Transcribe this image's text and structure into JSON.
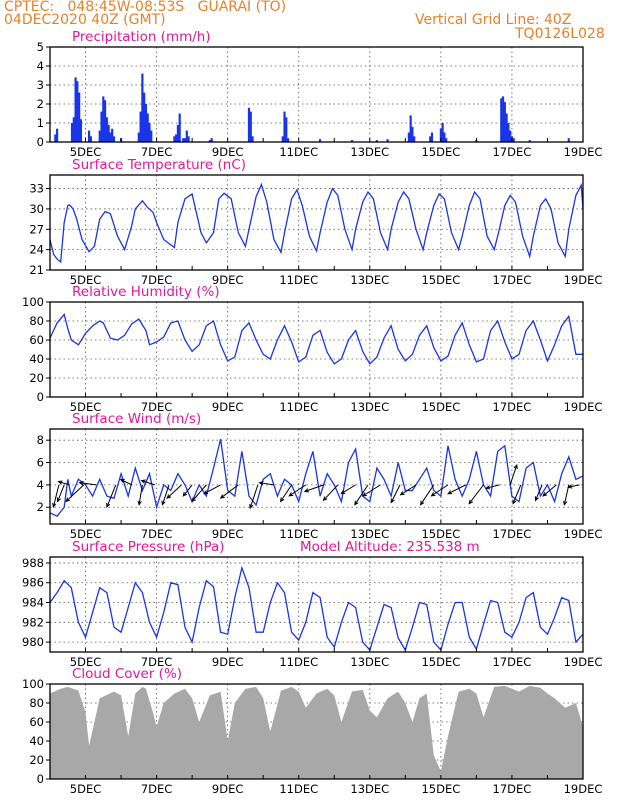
{
  "header": {
    "line1": "CPTEC:   048:45W-08:53S   GUARAI (TO)",
    "line2": "04DEC2020 40Z (GMT)",
    "right1": "Vertical Grid Line: 40Z",
    "right2": "TQ0126L028"
  },
  "model_altitude": "Model Altitude: 235.538 m",
  "x_axis": {
    "start_day": 4,
    "end_day": 19,
    "ticks": [
      {
        "day": 5,
        "label": "5DEC"
      },
      {
        "day": 7,
        "label": "7DEC"
      },
      {
        "day": 9,
        "label": "9DEC"
      },
      {
        "day": 11,
        "label": "11DEC"
      },
      {
        "day": 13,
        "label": "13DEC"
      },
      {
        "day": 15,
        "label": "15DEC"
      },
      {
        "day": 17,
        "label": "17DEC"
      },
      {
        "day": 19,
        "label": "19DEC"
      }
    ]
  },
  "colors": {
    "line": "#1a35e8",
    "bar": "#1a35e8",
    "cloud": "#a8a8a8",
    "title": "#e0189a",
    "header": "#e8802a",
    "grid": "#555555"
  },
  "chart_data": [
    {
      "type": "bar",
      "title": "Precipitation (mm/h)",
      "ylim": [
        0,
        5
      ],
      "yticks": [
        0,
        1,
        2,
        3,
        4,
        5
      ],
      "x_unit": "day of Dec 2020",
      "x": [
        4.15,
        4.2,
        4.62,
        4.67,
        4.72,
        4.77,
        4.82,
        4.87,
        5.1,
        5.15,
        5.4,
        5.45,
        5.5,
        5.55,
        5.6,
        5.65,
        5.7,
        5.75,
        5.8,
        6.0,
        6.5,
        6.55,
        6.6,
        6.65,
        6.7,
        6.75,
        6.8,
        6.85,
        7.5,
        7.55,
        7.6,
        7.65,
        7.75,
        7.8,
        7.85,
        7.9,
        8.5,
        8.55,
        9.6,
        9.65,
        9.7,
        10.55,
        10.6,
        10.65,
        10.7,
        11.6,
        12.5,
        13.2,
        13.5,
        14.1,
        14.15,
        14.2,
        14.25,
        14.7,
        14.75,
        15.0,
        15.05,
        15.1,
        15.15,
        16.0,
        16.7,
        16.75,
        16.8,
        16.85,
        16.9,
        16.95,
        17.0,
        17.05,
        17.5,
        18.6
      ],
      "values": [
        0.4,
        0.7,
        1.0,
        1.3,
        3.4,
        3.2,
        2.6,
        1.2,
        0.6,
        0.3,
        0.6,
        1.6,
        2.4,
        2.2,
        1.3,
        0.9,
        0.5,
        0.7,
        0.3,
        0.2,
        0.5,
        1.6,
        3.6,
        2.6,
        2.0,
        1.5,
        1.0,
        0.6,
        0.3,
        0.4,
        0.9,
        1.5,
        0.2,
        0.2,
        0.6,
        0.3,
        0.1,
        0.2,
        1.8,
        1.6,
        0.3,
        0.3,
        1.6,
        1.3,
        0.2,
        0.15,
        0.1,
        0.1,
        0.15,
        0.5,
        1.4,
        0.8,
        0.3,
        0.3,
        0.5,
        0.7,
        1.0,
        0.5,
        0.2,
        0.1,
        2.3,
        2.4,
        2.1,
        1.5,
        1.0,
        0.6,
        0.3,
        0.2,
        0.1,
        0.2
      ]
    },
    {
      "type": "line",
      "title": "Surface Temperature (nC)",
      "ylim": [
        21,
        35
      ],
      "yticks": [
        21,
        24,
        27,
        30,
        33
      ],
      "x": [
        4,
        4.1,
        4.2,
        4.3,
        4.4,
        4.5,
        4.55,
        4.65,
        4.75,
        4.9,
        5.1,
        5.25,
        5.4,
        5.55,
        5.7,
        5.9,
        6.1,
        6.3,
        6.4,
        6.6,
        6.75,
        6.9,
        7.0,
        7.2,
        7.5,
        7.6,
        7.8,
        8.0,
        8.25,
        8.4,
        8.6,
        8.75,
        8.9,
        9.1,
        9.3,
        9.5,
        9.6,
        9.8,
        9.95,
        10.1,
        10.3,
        10.5,
        10.6,
        10.8,
        10.95,
        11.1,
        11.3,
        11.5,
        11.6,
        11.8,
        11.95,
        12.1,
        12.3,
        12.5,
        12.6,
        12.8,
        12.95,
        13.1,
        13.3,
        13.5,
        13.6,
        13.8,
        13.95,
        14.1,
        14.3,
        14.5,
        14.6,
        14.8,
        14.95,
        15.1,
        15.3,
        15.5,
        15.6,
        15.8,
        15.95,
        16.1,
        16.3,
        16.5,
        16.6,
        16.8,
        16.95,
        17.1,
        17.3,
        17.5,
        17.6,
        17.8,
        17.95,
        18.1,
        18.3,
        18.5,
        18.6,
        18.8,
        18.95,
        19.0
      ],
      "values": [
        25.5,
        23.3,
        22.6,
        22.2,
        28.0,
        30.5,
        30.6,
        30.0,
        28.5,
        25.5,
        23.7,
        24.5,
        28.5,
        29.6,
        29.3,
        26.0,
        24.0,
        27.5,
        30.0,
        31.2,
        30.2,
        29.5,
        28.0,
        25.5,
        24.3,
        28.0,
        31.5,
        32.2,
        26.5,
        25.0,
        26.5,
        31.5,
        32.3,
        31.5,
        26.5,
        24.5,
        27.0,
        31.8,
        33.6,
        31.0,
        25.5,
        23.6,
        26.5,
        31.5,
        32.8,
        30.5,
        26.0,
        23.8,
        26.5,
        31.0,
        33.0,
        32.0,
        27.0,
        24.0,
        27.0,
        31.0,
        32.5,
        31.5,
        26.5,
        24.0,
        27.0,
        31.0,
        32.5,
        31.5,
        27.0,
        24.0,
        26.5,
        30.5,
        32.2,
        31.5,
        26.5,
        24.0,
        26.0,
        30.5,
        32.5,
        31.5,
        26.0,
        24.0,
        26.0,
        30.5,
        32.0,
        31.0,
        26.0,
        23.0,
        26.0,
        30.5,
        31.5,
        30.0,
        25.0,
        23.0,
        27.0,
        32.0,
        33.5,
        30.0
      ]
    },
    {
      "type": "line",
      "title": "Relative Humidity (%)",
      "ylim": [
        0,
        100
      ],
      "yticks": [
        0,
        20,
        40,
        60,
        80,
        100
      ],
      "x": [
        4,
        4.2,
        4.4,
        4.5,
        4.6,
        4.8,
        5.0,
        5.2,
        5.4,
        5.5,
        5.7,
        5.9,
        6.1,
        6.3,
        6.5,
        6.7,
        6.8,
        7.0,
        7.2,
        7.4,
        7.6,
        7.8,
        8.0,
        8.2,
        8.4,
        8.6,
        8.8,
        9.0,
        9.2,
        9.4,
        9.6,
        9.8,
        10.0,
        10.2,
        10.4,
        10.6,
        10.8,
        11.0,
        11.2,
        11.4,
        11.6,
        11.8,
        12.0,
        12.2,
        12.4,
        12.6,
        12.8,
        13.0,
        13.2,
        13.4,
        13.6,
        13.8,
        14.0,
        14.2,
        14.4,
        14.6,
        14.8,
        15.0,
        15.2,
        15.4,
        15.6,
        15.8,
        16.0,
        16.2,
        16.4,
        16.6,
        16.8,
        17.0,
        17.2,
        17.4,
        17.6,
        17.8,
        18.0,
        18.2,
        18.4,
        18.6,
        18.8,
        19.0
      ],
      "values": [
        62,
        78,
        87,
        72,
        60,
        55,
        67,
        75,
        80,
        78,
        62,
        60,
        65,
        77,
        82,
        70,
        55,
        58,
        63,
        78,
        80,
        60,
        48,
        55,
        75,
        80,
        55,
        38,
        42,
        70,
        78,
        60,
        45,
        40,
        60,
        75,
        58,
        37,
        42,
        65,
        70,
        47,
        35,
        40,
        60,
        70,
        48,
        35,
        42,
        62,
        75,
        50,
        38,
        45,
        65,
        75,
        52,
        38,
        43,
        65,
        78,
        55,
        37,
        40,
        70,
        80,
        58,
        40,
        45,
        70,
        80,
        60,
        38,
        55,
        75,
        85,
        45,
        45
      ]
    },
    {
      "type": "line",
      "title": "Surface Wind (m/s)",
      "ylim": [
        0.5,
        9
      ],
      "yticks": [
        2,
        4,
        6,
        8
      ],
      "x": [
        4,
        4.2,
        4.4,
        4.5,
        4.6,
        4.8,
        5.0,
        5.2,
        5.4,
        5.6,
        5.8,
        6.0,
        6.2,
        6.4,
        6.6,
        6.8,
        7.0,
        7.2,
        7.4,
        7.6,
        7.8,
        8.0,
        8.2,
        8.4,
        8.6,
        8.8,
        9.0,
        9.2,
        9.4,
        9.6,
        9.8,
        10.0,
        10.2,
        10.4,
        10.6,
        10.8,
        11.0,
        11.2,
        11.4,
        11.6,
        11.8,
        12.0,
        12.2,
        12.4,
        12.6,
        12.8,
        13.0,
        13.2,
        13.4,
        13.6,
        13.8,
        14.0,
        14.2,
        14.4,
        14.6,
        14.8,
        15.0,
        15.2,
        15.4,
        15.6,
        15.8,
        16.0,
        16.2,
        16.4,
        16.6,
        16.8,
        17.0,
        17.2,
        17.4,
        17.6,
        17.8,
        18.0,
        18.2,
        18.4,
        18.6,
        18.8,
        19.0
      ],
      "values": [
        1.5,
        1.2,
        2.0,
        4.5,
        3.0,
        4.5,
        4.0,
        3.0,
        4.5,
        3.0,
        2.8,
        5.0,
        3.0,
        5.5,
        3.5,
        5.0,
        2.0,
        4.0,
        3.5,
        5.0,
        4.0,
        2.5,
        4.0,
        3.0,
        5.5,
        8.1,
        3.5,
        3.0,
        7.0,
        3.0,
        2.2,
        4.5,
        5.0,
        3.0,
        4.5,
        4.0,
        2.5,
        5.0,
        7.0,
        3.0,
        5.0,
        4.0,
        2.5,
        6.0,
        7.2,
        3.0,
        2.5,
        5.5,
        4.5,
        3.0,
        6.0,
        3.5,
        3.5,
        4.5,
        5.5,
        3.5,
        3.0,
        7.5,
        4.5,
        3.0,
        4.5,
        7.0,
        4.0,
        3.0,
        7.0,
        7.5,
        3.0,
        2.5,
        5.5,
        6.0,
        3.0,
        4.0,
        2.5,
        5.0,
        6.5,
        4.5,
        4.8
      ],
      "vectors": [
        {
          "x": 4.25,
          "u": -0.5,
          "v": -2.0
        },
        {
          "x": 4.4,
          "u": -0.6,
          "v": -1.5
        },
        {
          "x": 4.55,
          "u": -1.0,
          "v": 0.3
        },
        {
          "x": 4.95,
          "u": -1.6,
          "v": -1.5
        },
        {
          "x": 5.3,
          "u": -1.5,
          "v": 0.2
        },
        {
          "x": 5.85,
          "u": -0.8,
          "v": -2.0
        },
        {
          "x": 6.3,
          "u": -1.0,
          "v": 0.5
        },
        {
          "x": 6.6,
          "u": -0.3,
          "v": -1.8
        },
        {
          "x": 6.95,
          "u": -1.2,
          "v": 0.4
        },
        {
          "x": 7.35,
          "u": -0.6,
          "v": -1.8
        },
        {
          "x": 7.7,
          "u": -1.3,
          "v": -1.2
        },
        {
          "x": 8.0,
          "u": -0.8,
          "v": -1.0
        },
        {
          "x": 8.4,
          "u": -1.3,
          "v": -1.5
        },
        {
          "x": 8.8,
          "u": -1.5,
          "v": -0.8
        },
        {
          "x": 9.3,
          "u": -1.6,
          "v": -1.2
        },
        {
          "x": 9.85,
          "u": -0.7,
          "v": -2.1
        },
        {
          "x": 10.3,
          "u": -1.3,
          "v": 0.2
        },
        {
          "x": 10.8,
          "u": -1.0,
          "v": -1.5
        },
        {
          "x": 11.2,
          "u": -1.5,
          "v": -1.0
        },
        {
          "x": 11.7,
          "u": -1.7,
          "v": -0.6
        },
        {
          "x": 12.1,
          "u": -1.3,
          "v": -1.4
        },
        {
          "x": 12.6,
          "u": -1.3,
          "v": -0.8
        },
        {
          "x": 12.95,
          "u": -1.2,
          "v": -1.8
        },
        {
          "x": 13.3,
          "u": -1.6,
          "v": -1.0
        },
        {
          "x": 13.85,
          "u": -0.8,
          "v": -1.6
        },
        {
          "x": 14.3,
          "u": -1.4,
          "v": -0.9
        },
        {
          "x": 14.8,
          "u": -1.2,
          "v": -1.8
        },
        {
          "x": 15.2,
          "u": -1.5,
          "v": -1.0
        },
        {
          "x": 15.7,
          "u": -1.6,
          "v": -0.8
        },
        {
          "x": 16.2,
          "u": -1.3,
          "v": -1.7
        },
        {
          "x": 16.65,
          "u": -1.2,
          "v": -0.3
        },
        {
          "x": 16.95,
          "u": 0.6,
          "v": 1.8
        },
        {
          "x": 17.25,
          "u": -0.7,
          "v": -1.7
        },
        {
          "x": 17.85,
          "u": -0.6,
          "v": -1.4
        },
        {
          "x": 18.25,
          "u": -1.2,
          "v": -1.0
        },
        {
          "x": 18.6,
          "u": -0.4,
          "v": -1.8
        },
        {
          "x": 18.9,
          "u": -1.0,
          "v": -0.2
        }
      ]
    },
    {
      "type": "line",
      "title": "Surface Pressure (hPa)",
      "ylim": [
        979,
        988.6
      ],
      "yticks": [
        980,
        982,
        984,
        986,
        988
      ],
      "x": [
        4,
        4.2,
        4.4,
        4.6,
        4.8,
        5.0,
        5.2,
        5.4,
        5.6,
        5.8,
        6.0,
        6.2,
        6.4,
        6.6,
        6.8,
        7.0,
        7.2,
        7.4,
        7.6,
        7.8,
        8.0,
        8.2,
        8.4,
        8.6,
        8.8,
        9.0,
        9.2,
        9.4,
        9.6,
        9.8,
        10.0,
        10.2,
        10.4,
        10.6,
        10.8,
        11.0,
        11.2,
        11.4,
        11.6,
        11.8,
        12.0,
        12.2,
        12.4,
        12.6,
        12.8,
        13.0,
        13.2,
        13.4,
        13.6,
        13.8,
        14.0,
        14.2,
        14.4,
        14.6,
        14.8,
        15.0,
        15.2,
        15.4,
        15.6,
        15.8,
        16.0,
        16.2,
        16.4,
        16.6,
        16.8,
        17.0,
        17.2,
        17.4,
        17.6,
        17.8,
        18.0,
        18.2,
        18.4,
        18.6,
        18.8,
        19.0
      ],
      "values": [
        984,
        985,
        986.2,
        985.5,
        982,
        980.5,
        983,
        985.5,
        985,
        981.5,
        981,
        983.5,
        986,
        985,
        982,
        980.5,
        983,
        986,
        985.8,
        981.5,
        980,
        983.5,
        986.2,
        985.6,
        981,
        980.8,
        984.5,
        987.5,
        985.5,
        981,
        981,
        984,
        986,
        985,
        981,
        980.2,
        982,
        985,
        984.5,
        980.5,
        979.5,
        982,
        984,
        983.5,
        980,
        979.2,
        981.5,
        983.8,
        983.5,
        980.4,
        979.2,
        981.5,
        984,
        983.8,
        980,
        979.2,
        981.8,
        984,
        984,
        980.5,
        979.3,
        981.8,
        984.2,
        984,
        981,
        980.5,
        982,
        984.5,
        985,
        981.5,
        980.8,
        982.5,
        984.5,
        984.2,
        980,
        980.8
      ]
    },
    {
      "type": "area",
      "title": "Cloud Cover (%)",
      "ylim": [
        0,
        100
      ],
      "yticks": [
        0,
        20,
        40,
        60,
        80,
        100
      ],
      "x": [
        4,
        4.3,
        4.5,
        4.8,
        5.0,
        5.1,
        5.4,
        5.8,
        6.0,
        6.2,
        6.4,
        6.6,
        6.7,
        6.9,
        7.0,
        7.2,
        7.5,
        7.8,
        8.0,
        8.2,
        8.5,
        8.8,
        9.0,
        9.2,
        9.5,
        9.8,
        10.0,
        10.2,
        10.5,
        10.8,
        11.0,
        11.2,
        11.5,
        11.8,
        12.0,
        12.2,
        12.5,
        12.8,
        13.0,
        13.2,
        13.5,
        13.8,
        14.0,
        14.2,
        14.4,
        14.6,
        14.8,
        15.0,
        15.2,
        15.5,
        15.8,
        16.0,
        16.2,
        16.5,
        16.8,
        17.0,
        17.2,
        17.5,
        17.8,
        18.0,
        18.2,
        18.5,
        18.8,
        19.0
      ],
      "values": [
        90,
        95,
        97,
        93,
        70,
        35,
        85,
        92,
        88,
        45,
        90,
        97,
        95,
        70,
        55,
        80,
        90,
        95,
        85,
        60,
        88,
        92,
        40,
        80,
        95,
        97,
        85,
        50,
        93,
        97,
        92,
        75,
        90,
        95,
        88,
        60,
        92,
        94,
        72,
        65,
        85,
        92,
        80,
        60,
        85,
        90,
        25,
        8,
        45,
        92,
        95,
        90,
        65,
        97,
        98,
        95,
        92,
        98,
        96,
        90,
        85,
        75,
        80,
        55
      ]
    }
  ]
}
